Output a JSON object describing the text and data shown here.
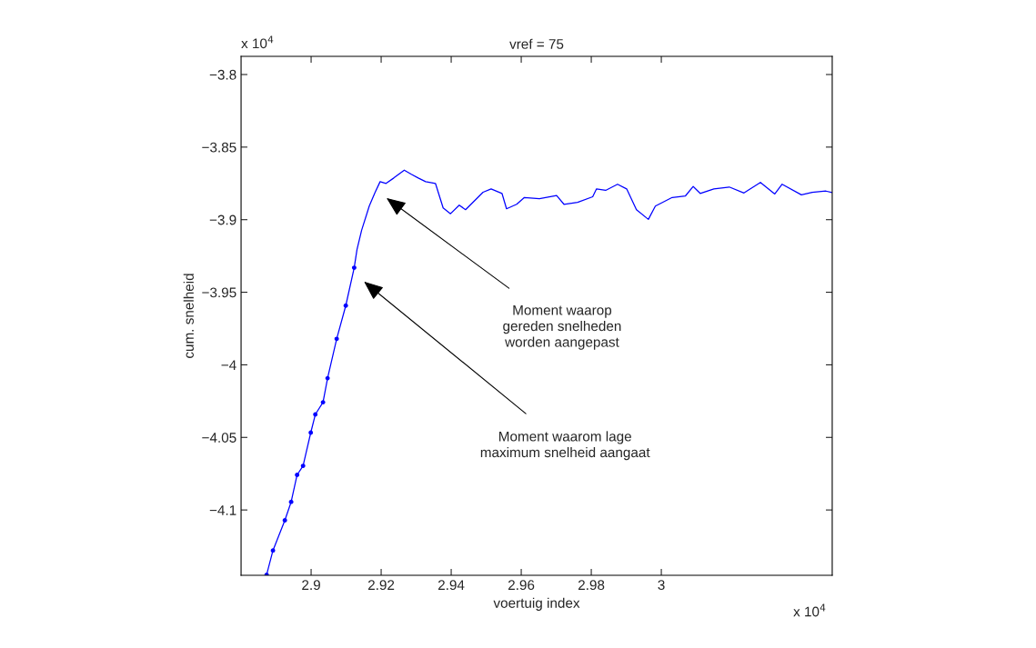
{
  "chart_data": {
    "type": "line",
    "title": "vref = 75",
    "xlabel": "voertuig index",
    "ylabel": "cum. snelheid",
    "xlim": [
      2.88,
      3.0488
    ],
    "ylim": [
      -4.145,
      -3.7875
    ],
    "xticks": [
      2.9,
      2.92,
      2.94,
      2.96,
      2.98,
      3
    ],
    "yticks": [
      {
        "value": -3.8,
        "label": "−3.8"
      },
      {
        "value": -3.85,
        "label": "−3.85"
      },
      {
        "value": -3.9,
        "label": "−3.9"
      },
      {
        "value": -3.95,
        "label": "−3.95"
      },
      {
        "value": -4,
        "label": "−4"
      },
      {
        "value": -4.05,
        "label": "−4.05"
      },
      {
        "value": -4.1,
        "label": "−4.1"
      }
    ],
    "grid": false,
    "legend": false,
    "series": [
      {
        "color": "#0000ff",
        "marker": "circle",
        "x": [
          2.8873,
          2.8891,
          2.8925,
          2.8943,
          2.896,
          2.8977,
          2.8999,
          2.9012,
          2.9034,
          2.9047,
          2.9073,
          2.9099,
          2.9123
        ],
        "values": [
          -4.1446,
          -4.1279,
          -4.1071,
          -4.0944,
          -4.0758,
          -4.0696,
          -4.0467,
          -4.0342,
          -4.0258,
          -4.0092,
          -3.9821,
          -3.9592,
          -3.9331
        ]
      },
      {
        "color": "#0000ff",
        "marker": "none",
        "x": [
          2.9123,
          2.9131,
          2.9144,
          2.9166,
          2.9182,
          2.9197,
          2.9214,
          2.9236,
          2.9266,
          2.9285,
          2.9306,
          2.9327,
          2.9355,
          2.9377,
          2.9398,
          2.9423,
          2.9441,
          2.9491,
          2.9514,
          2.9545,
          2.9558,
          2.9587,
          2.9609,
          2.9652,
          2.9701,
          2.9722,
          2.9761,
          2.9804,
          2.9815,
          2.9841,
          2.9875,
          2.9901,
          2.9929,
          2.9963,
          2.9983,
          3.0031,
          3.0069,
          3.0091,
          3.0111,
          3.015,
          3.0194,
          3.0236,
          3.0283,
          3.0324,
          3.0345,
          3.04,
          3.0431,
          3.047,
          3.0488
        ],
        "values": [
          -3.9331,
          -3.9206,
          -3.9075,
          -3.8906,
          -3.8816,
          -3.8738,
          -3.875,
          -3.8713,
          -3.8659,
          -3.8686,
          -3.8713,
          -3.8738,
          -3.875,
          -3.8919,
          -3.8959,
          -3.89,
          -3.8931,
          -3.8811,
          -3.8788,
          -3.8819,
          -3.8925,
          -3.8894,
          -3.8847,
          -3.8855,
          -3.8834,
          -3.8894,
          -3.8881,
          -3.8842,
          -3.8788,
          -3.8798,
          -3.8756,
          -3.8788,
          -3.8931,
          -3.8998,
          -3.8906,
          -3.8847,
          -3.8836,
          -3.8771,
          -3.8819,
          -3.8788,
          -3.8775,
          -3.8816,
          -3.8743,
          -3.8823,
          -3.8756,
          -3.8829,
          -3.8811,
          -3.8803,
          -3.8813
        ]
      }
    ],
    "annotations": [
      "x 10$^{4}$",
      "x 10$^{4}$",
      "Moment waarop\ngereden snelheden\nworden aangepast",
      "Moment waarom lage\nmaximum snelheid aangaat"
    ]
  }
}
